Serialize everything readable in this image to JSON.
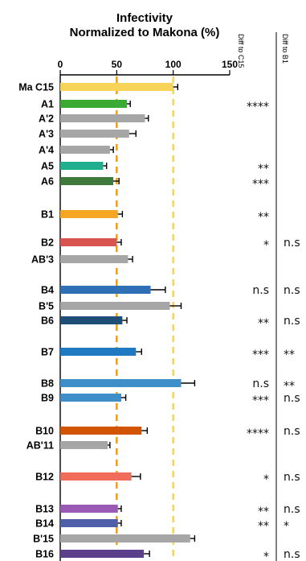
{
  "chart_data": {
    "type": "bar",
    "orientation": "horizontal",
    "title": [
      "Infectivity",
      "Normalized to Makona (%)"
    ],
    "xlim": [
      0,
      150
    ],
    "xticks": [
      0,
      50,
      100,
      150
    ],
    "reference_lines": [
      {
        "value": 50,
        "color": "#f39c12"
      },
      {
        "value": 100,
        "color": "#f7d358"
      }
    ],
    "column_headers": [
      "Diff to C15",
      "Diff to B1"
    ],
    "bars": [
      {
        "label": "Ma C15",
        "value": 100,
        "error": 4,
        "color": "#f7d358",
        "diff_c15": "",
        "diff_b1": ""
      },
      {
        "label": "A1",
        "value": 59,
        "error": 3,
        "color": "#3aaa35",
        "diff_c15": "****",
        "diff_b1": ""
      },
      {
        "label": "A'2",
        "value": 75,
        "error": 3,
        "color": "#a6a6a6",
        "diff_c15": "",
        "diff_b1": ""
      },
      {
        "label": "A'3",
        "value": 61,
        "error": 6,
        "color": "#a6a6a6",
        "diff_c15": "",
        "diff_b1": ""
      },
      {
        "label": "A'4",
        "value": 44,
        "error": 3,
        "color": "#a6a6a6",
        "diff_c15": "",
        "diff_b1": ""
      },
      {
        "label": "A5",
        "value": 38,
        "error": 3,
        "color": "#1fae8e",
        "diff_c15": "**",
        "diff_b1": ""
      },
      {
        "label": "A6",
        "value": 47,
        "error": 5,
        "color": "#3e7a3c",
        "diff_c15": "***",
        "diff_b1": ""
      },
      {
        "label": "B1",
        "value": 51,
        "error": 4,
        "color": "#f5a623",
        "diff_c15": "**",
        "diff_b1": ""
      },
      {
        "label": "B2",
        "value": 50,
        "error": 4,
        "color": "#d9534f",
        "diff_c15": "*",
        "diff_b1": "n.s"
      },
      {
        "label": "AB'3",
        "value": 60,
        "error": 4,
        "color": "#a6a6a6",
        "diff_c15": "",
        "diff_b1": ""
      },
      {
        "label": "B4",
        "value": 80,
        "error": 13,
        "color": "#2f6fb5",
        "diff_c15": "n.s",
        "diff_b1": "n.s"
      },
      {
        "label": "B'5",
        "value": 97,
        "error": 10,
        "color": "#a6a6a6",
        "diff_c15": "",
        "diff_b1": ""
      },
      {
        "label": "B6",
        "value": 55,
        "error": 4,
        "color": "#1f4e79",
        "diff_c15": "**",
        "diff_b1": "n.s"
      },
      {
        "label": "B7",
        "value": 67,
        "error": 5,
        "color": "#1f7ac2",
        "diff_c15": "***",
        "diff_b1": "**"
      },
      {
        "label": "B8",
        "value": 107,
        "error": 12,
        "color": "#3d8ec9",
        "diff_c15": "n.s",
        "diff_b1": "**"
      },
      {
        "label": "B9",
        "value": 54,
        "error": 4,
        "color": "#3d8ec9",
        "diff_c15": "***",
        "diff_b1": "n.s"
      },
      {
        "label": "B10",
        "value": 72,
        "error": 5,
        "color": "#d35400",
        "diff_c15": "****",
        "diff_b1": "n.s"
      },
      {
        "label": "AB'11",
        "value": 42,
        "error": 2,
        "color": "#a6a6a6",
        "diff_c15": "",
        "diff_b1": ""
      },
      {
        "label": "B12",
        "value": 63,
        "error": 8,
        "color": "#f26c5a",
        "diff_c15": "*",
        "diff_b1": "n.s"
      },
      {
        "label": "B13",
        "value": 51,
        "error": 3,
        "color": "#9b59b6",
        "diff_c15": "**",
        "diff_b1": "n.s"
      },
      {
        "label": "B14",
        "value": 51,
        "error": 3,
        "color": "#4f5fa8",
        "diff_c15": "**",
        "diff_b1": "*"
      },
      {
        "label": "B'15",
        "value": 115,
        "error": 4,
        "color": "#a6a6a6",
        "diff_c15": "",
        "diff_b1": ""
      },
      {
        "label": "B16",
        "value": 74,
        "error": 5,
        "color": "#5b3f8c",
        "diff_c15": "*",
        "diff_b1": "n.s"
      }
    ]
  }
}
